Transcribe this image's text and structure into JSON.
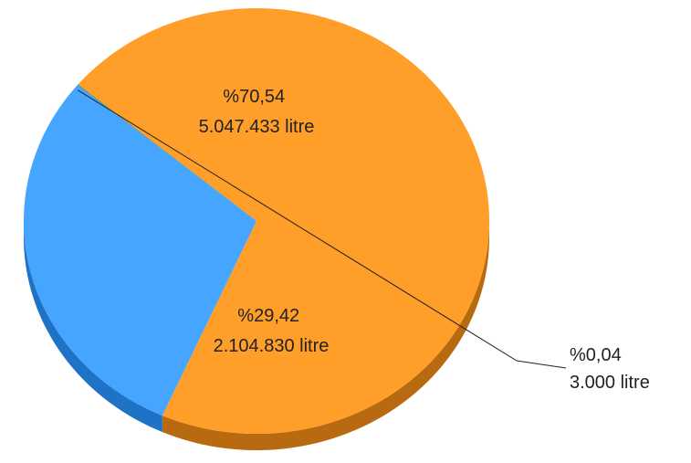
{
  "chart_data": {
    "type": "pie",
    "style": "3d",
    "unit": "litre",
    "slices": [
      {
        "percent_label": "%70,54",
        "value_label": "5.047.433 litre",
        "percent": 70.54,
        "value": 5047433,
        "color": "#FF9F2A",
        "side_color": "#B86A10"
      },
      {
        "percent_label": "%29,42",
        "value_label": "2.104.830 litre",
        "percent": 29.42,
        "value": 2104830,
        "color": "#45A5FF",
        "side_color": "#1F73C6"
      },
      {
        "percent_label": "%0,04",
        "value_label": "3.000 litre",
        "percent": 0.04,
        "value": 3000,
        "color": "#2F8A3A",
        "side_color": "#1C5C25"
      }
    ]
  }
}
